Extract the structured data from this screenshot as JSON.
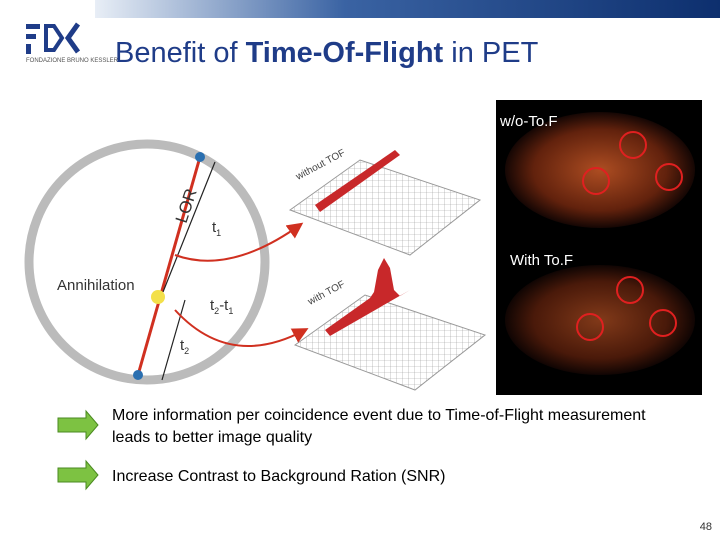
{
  "header": {
    "logo_text": "FONDAZIONE BRUNO KESSLER",
    "title": [
      "Benefit of ",
      "Time-Of-Flight",
      " in PET"
    ]
  },
  "diagram": {
    "lor": "LOR",
    "t1": {
      "base": "t",
      "sub": "1"
    },
    "annihilation": "Annihilation",
    "t2_t1": {
      "base1": "t",
      "sub1": "2",
      "minus": "-t",
      "sub2": "1"
    },
    "t2": {
      "base": "t",
      "sub": "2"
    },
    "without_tof": "without TOF",
    "with_tof": "with TOF"
  },
  "images": {
    "top_label": "w/o-To.F",
    "bottom_label": "With To.F"
  },
  "bullets": [
    "More information per coincidence event due to Time-of-Flight measurement leads to better image quality",
    "Increase Contrast to Background Ration (SNR)"
  ],
  "footer": {
    "page_number": "48"
  }
}
